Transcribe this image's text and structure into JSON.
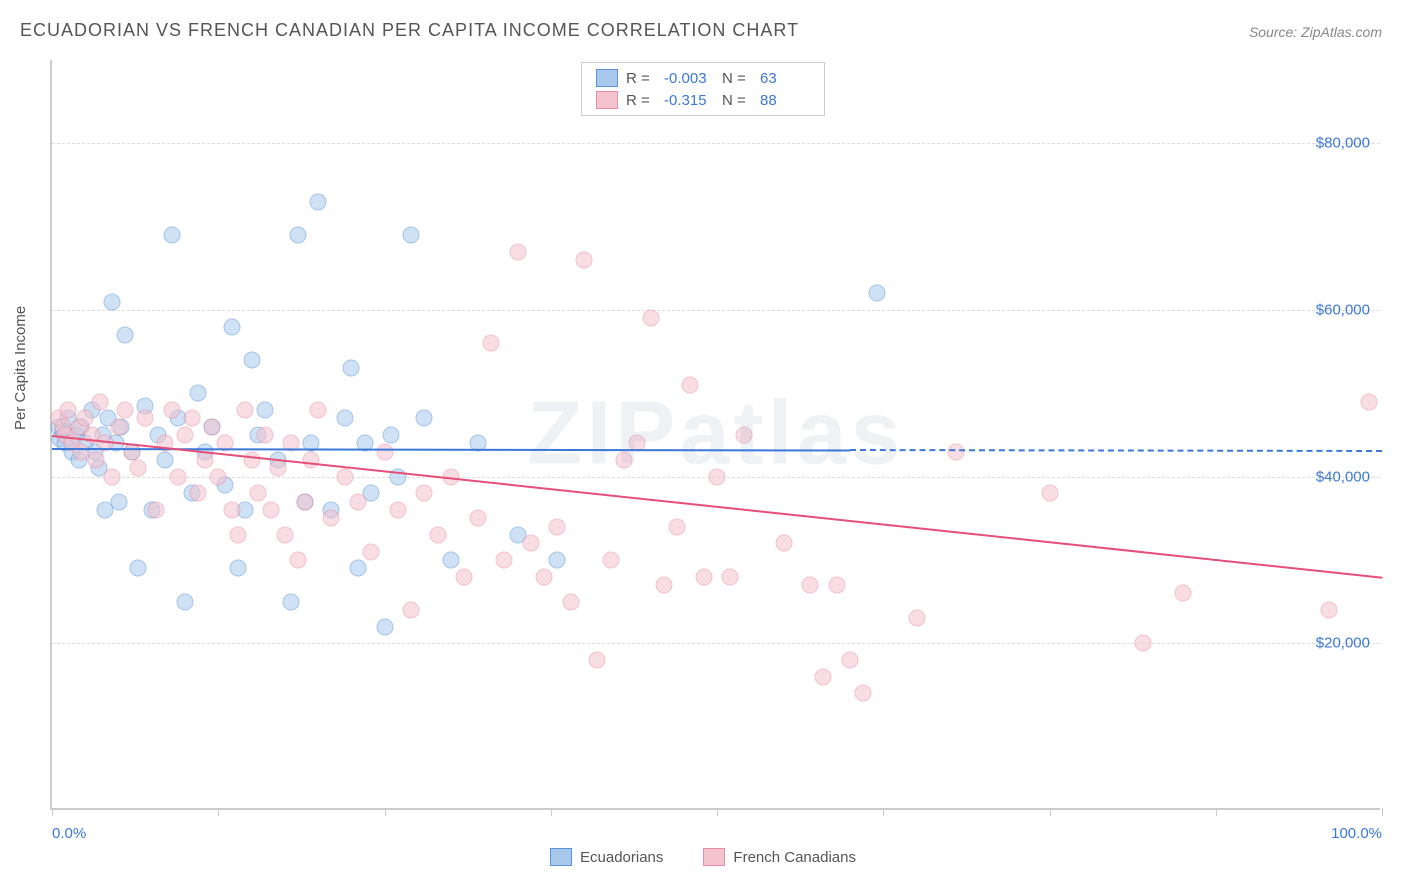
{
  "title": "ECUADORIAN VS FRENCH CANADIAN PER CAPITA INCOME CORRELATION CHART",
  "source": "Source: ZipAtlas.com",
  "watermark": "ZIPatlas",
  "y_axis_title": "Per Capita Income",
  "chart": {
    "type": "scatter",
    "xlim": [
      0,
      100
    ],
    "ylim": [
      0,
      90000
    ],
    "background_color": "#ffffff",
    "grid_color": "#dddddd",
    "axis_color": "#cccccc",
    "tick_label_color": "#3b78d8",
    "tick_label_fontsize": 15,
    "y_gridlines": [
      20000,
      40000,
      60000,
      80000
    ],
    "y_tick_labels": [
      "$20,000",
      "$40,000",
      "$60,000",
      "$80,000"
    ],
    "x_ticks": [
      0,
      12.5,
      25,
      37.5,
      50,
      62.5,
      75,
      87.5,
      100
    ],
    "x_min_label": "0.0%",
    "x_max_label": "100.0%",
    "marker_size": 17,
    "marker_opacity": 0.55
  },
  "series": [
    {
      "name": "Ecuadorians",
      "fill_color": "#a9c9ec",
      "border_color": "#5a94d6",
      "line_color": "#3b78d8",
      "R": "-0.003",
      "N": "63",
      "trend": {
        "y_at_x0": 43500,
        "y_at_x100": 43200,
        "solid_until_x": 60
      },
      "points": [
        [
          0.5,
          46000
        ],
        [
          0.6,
          44500
        ],
        [
          0.8,
          45500
        ],
        [
          1.0,
          44000
        ],
        [
          1.2,
          47000
        ],
        [
          1.5,
          43000
        ],
        [
          1.8,
          45000
        ],
        [
          2.0,
          42000
        ],
        [
          2.2,
          46000
        ],
        [
          2.5,
          44000
        ],
        [
          3.0,
          48000
        ],
        [
          3.2,
          43000
        ],
        [
          3.5,
          41000
        ],
        [
          3.8,
          45000
        ],
        [
          4.0,
          36000
        ],
        [
          4.2,
          47000
        ],
        [
          4.5,
          61000
        ],
        [
          4.8,
          44000
        ],
        [
          5.0,
          37000
        ],
        [
          5.2,
          46000
        ],
        [
          5.5,
          57000
        ],
        [
          6.0,
          43000
        ],
        [
          6.5,
          29000
        ],
        [
          7.0,
          48500
        ],
        [
          7.5,
          36000
        ],
        [
          8.0,
          45000
        ],
        [
          8.5,
          42000
        ],
        [
          9.0,
          69000
        ],
        [
          9.5,
          47000
        ],
        [
          10.0,
          25000
        ],
        [
          10.5,
          38000
        ],
        [
          11.0,
          50000
        ],
        [
          11.5,
          43000
        ],
        [
          12.0,
          46000
        ],
        [
          13.0,
          39000
        ],
        [
          13.5,
          58000
        ],
        [
          14.0,
          29000
        ],
        [
          14.5,
          36000
        ],
        [
          15.0,
          54000
        ],
        [
          15.5,
          45000
        ],
        [
          16.0,
          48000
        ],
        [
          17.0,
          42000
        ],
        [
          18.0,
          25000
        ],
        [
          18.5,
          69000
        ],
        [
          19.0,
          37000
        ],
        [
          19.5,
          44000
        ],
        [
          20.0,
          73000
        ],
        [
          21.0,
          36000
        ],
        [
          22.0,
          47000
        ],
        [
          22.5,
          53000
        ],
        [
          23.0,
          29000
        ],
        [
          23.5,
          44000
        ],
        [
          24.0,
          38000
        ],
        [
          25.0,
          22000
        ],
        [
          25.5,
          45000
        ],
        [
          26.0,
          40000
        ],
        [
          27.0,
          69000
        ],
        [
          28.0,
          47000
        ],
        [
          30.0,
          30000
        ],
        [
          32.0,
          44000
        ],
        [
          35.0,
          33000
        ],
        [
          38.0,
          30000
        ],
        [
          62.0,
          62000
        ]
      ]
    },
    {
      "name": "French Canadians",
      "fill_color": "#f5c3ce",
      "border_color": "#e88fa3",
      "line_color": "#e64f77",
      "R": "-0.315",
      "N": "88",
      "trend": {
        "y_at_x0": 45000,
        "y_at_x100": 28000,
        "solid_until_x": 100
      },
      "points": [
        [
          0.5,
          47000
        ],
        [
          0.8,
          46000
        ],
        [
          1.0,
          45000
        ],
        [
          1.2,
          48000
        ],
        [
          1.5,
          44000
        ],
        [
          2.0,
          46000
        ],
        [
          2.2,
          43000
        ],
        [
          2.5,
          47000
        ],
        [
          3.0,
          45000
        ],
        [
          3.3,
          42000
        ],
        [
          3.6,
          49000
        ],
        [
          4.0,
          44000
        ],
        [
          4.5,
          40000
        ],
        [
          5.0,
          46000
        ],
        [
          5.5,
          48000
        ],
        [
          6.0,
          43000
        ],
        [
          6.5,
          41000
        ],
        [
          7.0,
          47000
        ],
        [
          7.8,
          36000
        ],
        [
          8.5,
          44000
        ],
        [
          9.0,
          48000
        ],
        [
          9.5,
          40000
        ],
        [
          10.0,
          45000
        ],
        [
          10.5,
          47000
        ],
        [
          11.0,
          38000
        ],
        [
          11.5,
          42000
        ],
        [
          12.0,
          46000
        ],
        [
          12.5,
          40000
        ],
        [
          13.0,
          44000
        ],
        [
          13.5,
          36000
        ],
        [
          14.0,
          33000
        ],
        [
          14.5,
          48000
        ],
        [
          15.0,
          42000
        ],
        [
          15.5,
          38000
        ],
        [
          16.0,
          45000
        ],
        [
          16.5,
          36000
        ],
        [
          17.0,
          41000
        ],
        [
          17.5,
          33000
        ],
        [
          18.0,
          44000
        ],
        [
          18.5,
          30000
        ],
        [
          19.0,
          37000
        ],
        [
          19.5,
          42000
        ],
        [
          20.0,
          48000
        ],
        [
          21.0,
          35000
        ],
        [
          22.0,
          40000
        ],
        [
          23.0,
          37000
        ],
        [
          24.0,
          31000
        ],
        [
          25.0,
          43000
        ],
        [
          26.0,
          36000
        ],
        [
          27.0,
          24000
        ],
        [
          28.0,
          38000
        ],
        [
          29.0,
          33000
        ],
        [
          30.0,
          40000
        ],
        [
          31.0,
          28000
        ],
        [
          32.0,
          35000
        ],
        [
          33.0,
          56000
        ],
        [
          34.0,
          30000
        ],
        [
          35.0,
          67000
        ],
        [
          36.0,
          32000
        ],
        [
          37.0,
          28000
        ],
        [
          38.0,
          34000
        ],
        [
          39.0,
          25000
        ],
        [
          40.0,
          66000
        ],
        [
          41.0,
          18000
        ],
        [
          42.0,
          30000
        ],
        [
          43.0,
          42000
        ],
        [
          44.0,
          44000
        ],
        [
          45.0,
          59000
        ],
        [
          46.0,
          27000
        ],
        [
          47.0,
          34000
        ],
        [
          48.0,
          51000
        ],
        [
          49.0,
          28000
        ],
        [
          50.0,
          40000
        ],
        [
          51.0,
          28000
        ],
        [
          52.0,
          45000
        ],
        [
          55.0,
          32000
        ],
        [
          57.0,
          27000
        ],
        [
          58.0,
          16000
        ],
        [
          59.0,
          27000
        ],
        [
          60.0,
          18000
        ],
        [
          61.0,
          14000
        ],
        [
          65.0,
          23000
        ],
        [
          68.0,
          43000
        ],
        [
          75.0,
          38000
        ],
        [
          82.0,
          20000
        ],
        [
          85.0,
          26000
        ],
        [
          96.0,
          24000
        ],
        [
          99.0,
          49000
        ]
      ]
    }
  ],
  "legend_top_labels": {
    "R": "R =",
    "N": "N ="
  }
}
